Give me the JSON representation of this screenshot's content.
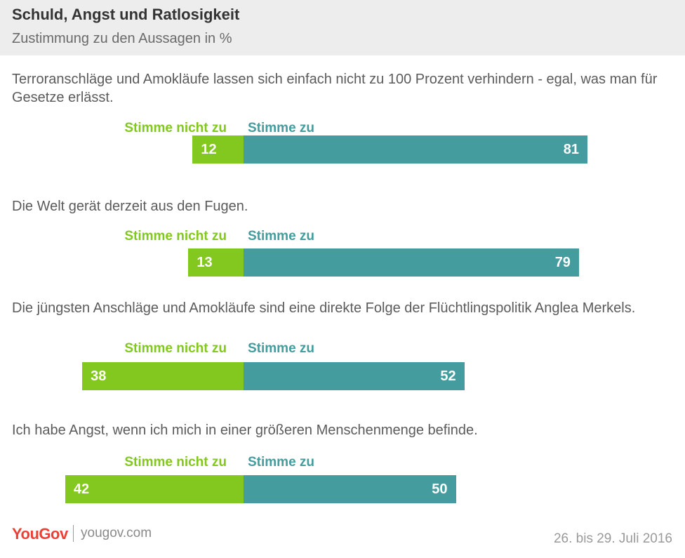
{
  "header": {
    "title": "Schuld, Angst und Ratlosigkeit",
    "subtitle": "Zustimmung zu den Aussagen in %"
  },
  "colors": {
    "disagree": "#82c81e",
    "agree": "#449c9f",
    "brand": "#ee3f35"
  },
  "chart_data": {
    "type": "bar",
    "orientation": "horizontal-diverging",
    "categories": [
      "Terroranschläge und Amokläufe lassen sich einfach nicht zu 100 Prozent verhindern - egal, was man für Gesetze erlässt.",
      "Die Welt gerät derzeit aus den Fugen.",
      "Die jüngsten Anschläge und Amokläufe sind eine direkte Folge der Flüchtlingspolitik Anglea Merkels.",
      "Ich habe Angst, wenn ich mich in einer größeren Menschenmenge befinde."
    ],
    "series": [
      {
        "name": "Stimme nicht zu",
        "values": [
          12,
          13,
          38,
          42
        ]
      },
      {
        "name": "Stimme zu",
        "values": [
          81,
          79,
          52,
          50
        ]
      }
    ],
    "title": "Schuld, Angst und Ratlosigkeit",
    "subtitle": "Zustimmung zu den Aussagen in %"
  },
  "footer": {
    "logo": "YouGov",
    "site": "yougov.com",
    "date": "26. bis 29. Juli 2016"
  }
}
